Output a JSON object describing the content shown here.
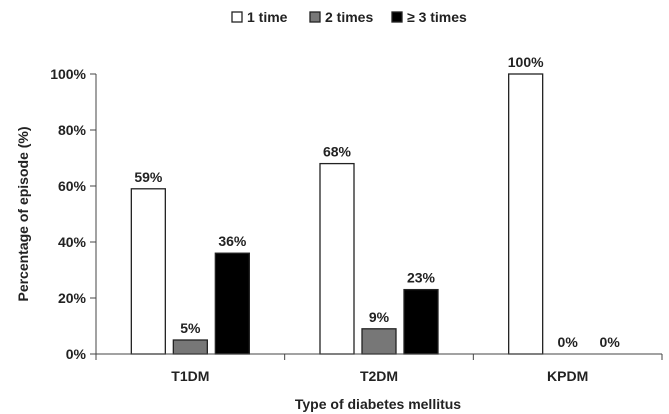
{
  "chart_data": {
    "type": "bar",
    "categories": [
      "T1DM",
      "T2DM",
      "KPDM"
    ],
    "series": [
      {
        "name": "1 time",
        "values": [
          59,
          68,
          100
        ],
        "color": "#ffffff"
      },
      {
        "name": "2 times",
        "values": [
          5,
          9,
          0
        ],
        "color": "#777777"
      },
      {
        "name": "≥ 3 times",
        "values": [
          36,
          23,
          0
        ],
        "color": "#000000"
      }
    ],
    "data_labels": [
      [
        "59%",
        "68%",
        "100%"
      ],
      [
        "5%",
        "9%",
        "0%"
      ],
      [
        "36%",
        "23%",
        "0%"
      ]
    ],
    "xlabel": "Type of diabetes mellitus",
    "ylabel": "Percentage of episode (%)",
    "ylim": [
      0,
      100
    ],
    "yticks": [
      0,
      20,
      40,
      60,
      80,
      100
    ],
    "ytick_labels": [
      "0%",
      "20%",
      "40%",
      "60%",
      "80%",
      "100%"
    ],
    "grid": false,
    "legend": "top-center"
  }
}
